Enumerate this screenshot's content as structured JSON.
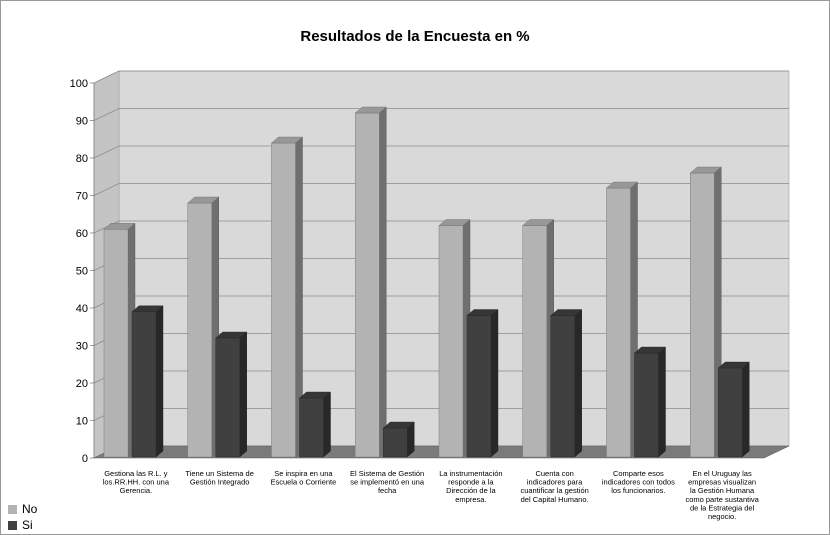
{
  "chart_data": {
    "type": "bar",
    "title": "Resultados de la Encuesta en %",
    "xlabel": "",
    "ylabel": "",
    "ylim": [
      0,
      100
    ],
    "yticks": [
      0,
      10,
      20,
      30,
      40,
      50,
      60,
      70,
      80,
      90,
      100
    ],
    "grid": true,
    "legend_position": "bottom-left",
    "categories": [
      [
        "Gestiona las R.L. y",
        "los.RR.HH. con una",
        "Gerencia."
      ],
      [
        "Tiene un Sistema de",
        "Gestión Integrado"
      ],
      [
        "Se inspira en una",
        "Escuela o Corriente"
      ],
      [
        "El Sistema de Gestión",
        "se implementó en una",
        "fecha"
      ],
      [
        "La instrumentación",
        "responde a la",
        "Dirección de la",
        "empresa."
      ],
      [
        "Cuenta con",
        "indicadores para",
        "cuantificar la gestión",
        "del Capital Humano."
      ],
      [
        "Comparte esos",
        "indicadores con todos",
        "los funcionarios."
      ],
      [
        "En el Uruguay las",
        "empresas visualizan",
        "la Gestión Humana",
        "como parte sustantiva",
        "de la Estrategia del",
        "negocio."
      ]
    ],
    "series": [
      {
        "name": "No",
        "color": "#b3b3b3",
        "values": [
          61,
          68,
          84,
          92,
          62,
          62,
          72,
          76
        ]
      },
      {
        "name": "Si",
        "color": "#404040",
        "values": [
          39,
          32,
          16,
          8,
          38,
          38,
          28,
          24
        ]
      }
    ]
  }
}
